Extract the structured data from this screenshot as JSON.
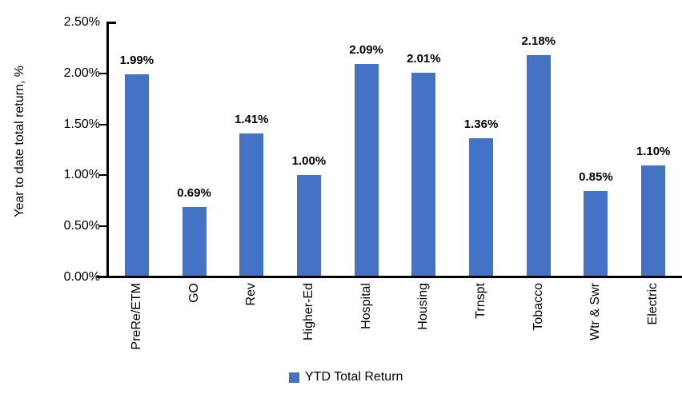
{
  "chart_data": {
    "type": "bar",
    "title": "",
    "ylabel": "Year to date total return, %",
    "xlabel": "",
    "legend": "YTD Total Return",
    "legend_position": "bottom",
    "bar_color": "#4472C4",
    "axis_color": "#000000",
    "grid": false,
    "categories": [
      "PreRe/ETM",
      "GO",
      "Rev",
      "Higher-Ed",
      "Hospital",
      "Housing",
      "Trnspt",
      "Tobacco",
      "Wtr & Swr",
      "Electric"
    ],
    "series": [
      {
        "name": "YTD Total Return",
        "values": [
          1.99,
          0.69,
          1.41,
          1.0,
          2.09,
          2.01,
          1.36,
          2.18,
          0.85,
          1.1
        ]
      }
    ],
    "value_labels": [
      "1.99%",
      "0.69%",
      "1.41%",
      "1.00%",
      "2.09%",
      "2.01%",
      "1.36%",
      "2.18%",
      "0.85%",
      "1.10%"
    ],
    "ylim": [
      0,
      2.5
    ],
    "yticks": [
      {
        "value": 0.0,
        "label": "0.00%"
      },
      {
        "value": 0.5,
        "label": "0.50%"
      },
      {
        "value": 1.0,
        "label": "1.00%"
      },
      {
        "value": 1.5,
        "label": "1.50%"
      },
      {
        "value": 2.0,
        "label": "2.00%"
      },
      {
        "value": 2.5,
        "label": "2.50%"
      }
    ]
  }
}
